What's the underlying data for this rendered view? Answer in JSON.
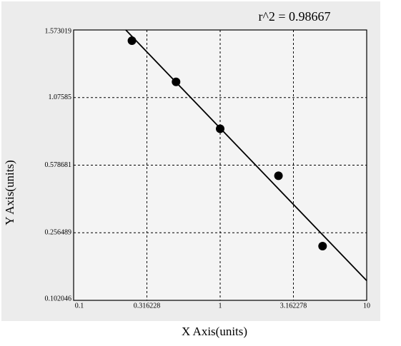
{
  "chart_data": {
    "type": "scatter",
    "annotation": "r^2  = 0.98667",
    "x_label": "X Axis(units)",
    "y_label": "Y Axis(units)",
    "x": [
      0.25,
      0.5,
      1,
      2.5,
      5
    ],
    "values": [
      1.494,
      1.191,
      0.846,
      0.528,
      0.226
    ],
    "color": "#000000",
    "fit_line": {
      "x": [
        0.227,
        10
      ],
      "y": [
        1.573,
        0.147
      ]
    },
    "x_log": true,
    "xlim": [
      0.1,
      10
    ],
    "xticks": [
      0.1,
      0.316228,
      1,
      3.162278,
      10
    ],
    "ylim": [
      0.102046,
      1.573019
    ],
    "yticks": [
      0.102046,
      0.256489,
      0.578681,
      1.07585,
      1.573019
    ],
    "grid": true
  }
}
